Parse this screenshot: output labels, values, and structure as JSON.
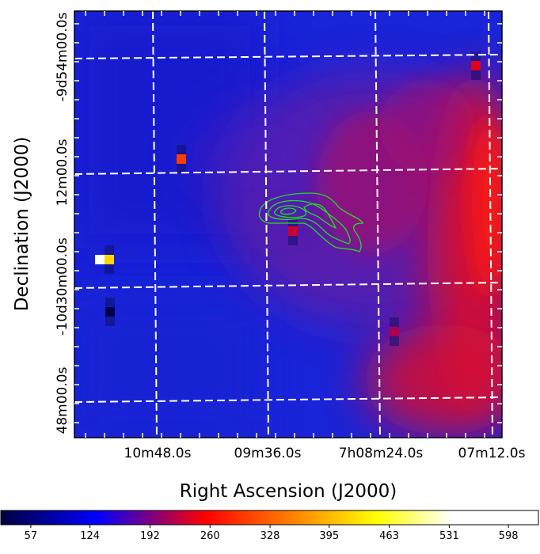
{
  "chart_data": {
    "type": "heatmap",
    "title": "",
    "xlabel": "Right Ascension (J2000)",
    "ylabel": "Declination (J2000)",
    "x_ticks": [
      "10m48.0s",
      "09m36.0s",
      "7h08m24.0s",
      "07m12.0s"
    ],
    "y_ticks": [
      "-9d54m00.0s",
      "12m00.0s",
      "-10d30m00.0s",
      "48m00.0s"
    ],
    "grid": true,
    "colorbar": {
      "location": "bottom",
      "ticks": [
        57,
        124,
        192,
        260,
        328,
        395,
        463,
        531,
        598
      ],
      "range": [
        23,
        632
      ],
      "colors": [
        "#000040",
        "#0000ff",
        "#ff0000",
        "#ffff00",
        "#ffffff"
      ]
    },
    "overlay": "green contours",
    "hot_pixels": [
      {
        "ra": "07m12.0s",
        "dec": "-9d54m00.0s",
        "value": 240
      },
      {
        "ra": "10m48.0s",
        "dec": "12m00.0s",
        "value": 300
      },
      {
        "ra": "09m36.0s",
        "dec": "-10d20m00.0s",
        "value": 230
      },
      {
        "ra": "11m15.0s",
        "dec": "-10d26m00.0s",
        "value": 600
      },
      {
        "ra": "08m00.0s",
        "dec": "-10d36m00.0s",
        "value": 215
      },
      {
        "ra": "11m00.0s",
        "dec": "-10d34m00.0s",
        "value": 30
      }
    ]
  }
}
